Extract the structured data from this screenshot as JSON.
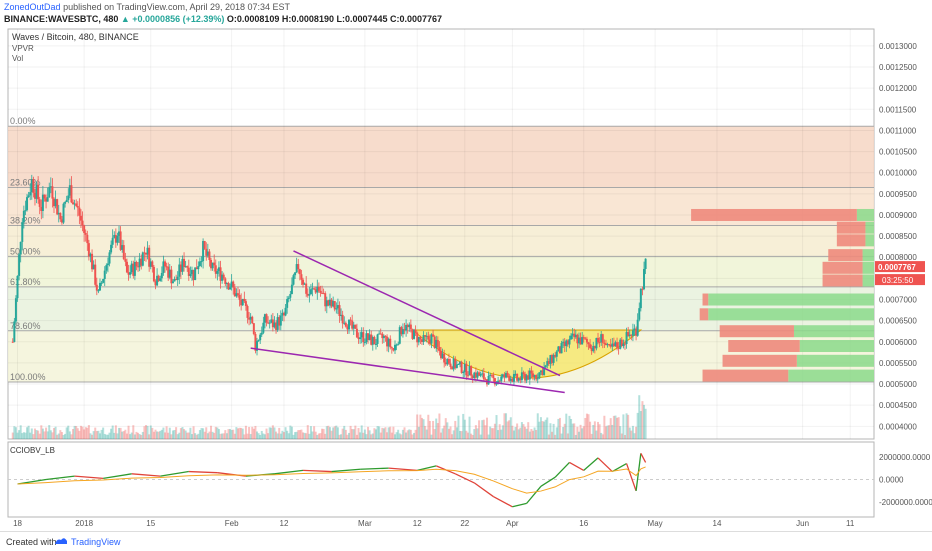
{
  "header": {
    "user": "ZonedOutDad",
    "published": "published on TradingView.com, April 29, 2018 07:34 EST",
    "symbol_line": "BINANCE:WAVESBTC, 480",
    "change": "▲ +0.0000856 (+12.39%)",
    "ohlc": "O:0.0008109 H:0.0008190 L:0.0007445 C:0.0007767"
  },
  "pane": {
    "title": "Waves / Bitcoin, 480, BINANCE",
    "ind1": "VPVR",
    "ind2": "Vol",
    "osc_label": "CCIOBV_LB"
  },
  "footer": {
    "created_with": "Created with",
    "brand": "TradingView"
  },
  "colors": {
    "up": "#26a69a",
    "down": "#ef5350",
    "wedge": "#9c27b0",
    "cup": "#f5e663",
    "fib_top_fill": "#f6d6c3",
    "fib_bottom_fill": "#f3f3d8",
    "vp_up": "#8bd98b",
    "vp_down": "#ee8a7c",
    "obv_green": "#2e9b2e",
    "obv_red": "#e0443a",
    "obv_orange": "#f5a623",
    "price_tag": "#ef5350"
  },
  "chart_data": {
    "type": "candlestick",
    "title": "Waves / Bitcoin, 480, BINANCE",
    "price_axis": [
      "0.0013000",
      "0.0012500",
      "0.0012000",
      "0.0011500",
      "0.0011000",
      "0.0010500",
      "0.0010000",
      "0.0009500",
      "0.0009000",
      "0.0008500",
      "0.0008000",
      "0.0007500",
      "0.0007000",
      "0.0006500",
      "0.0006000",
      "0.0005500",
      "0.0005000",
      "0.0004500",
      "0.0004000"
    ],
    "price_axis_values": [
      0.0013,
      0.00125,
      0.0012,
      0.00115,
      0.0011,
      0.00105,
      0.001,
      0.00095,
      0.0009,
      0.00085,
      0.0008,
      0.00075,
      0.0007,
      0.00065,
      0.0006,
      0.00055,
      0.0005,
      0.00045,
      0.0004
    ],
    "ylim": [
      0.00037,
      0.00134
    ],
    "last_price": "0.0007767",
    "countdown": "03:25:50",
    "time_axis": [
      "18",
      "2018",
      "15",
      "Feb",
      "12",
      "Mar",
      "12",
      "22",
      "Apr",
      "16",
      "May",
      "14",
      "Jun",
      "11"
    ],
    "time_axis_days": [
      -14,
      0,
      14,
      31,
      42,
      59,
      70,
      80,
      90,
      105,
      120,
      133,
      151,
      161
    ],
    "x_range_days": [
      -16,
      166
    ],
    "fib_levels": [
      {
        "label": "0.00%",
        "price": 0.00111
      },
      {
        "label": "23.60%",
        "price": 0.000965
      },
      {
        "label": "38.20%",
        "price": 0.000875
      },
      {
        "label": "50.00%",
        "price": 0.000802
      },
      {
        "label": "61.80%",
        "price": 0.00073
      },
      {
        "label": "78.60%",
        "price": 0.000626
      },
      {
        "label": "100.00%",
        "price": 0.000505
      }
    ],
    "ohlc_path": [
      {
        "d": -15,
        "p": 0.0006
      },
      {
        "d": -13,
        "p": 0.0009
      },
      {
        "d": -11,
        "p": 0.00098
      },
      {
        "d": -9,
        "p": 0.00092
      },
      {
        "d": -7,
        "p": 0.00097
      },
      {
        "d": -5,
        "p": 0.00089
      },
      {
        "d": -3,
        "p": 0.00096
      },
      {
        "d": -1,
        "p": 0.0009
      },
      {
        "d": 1,
        "p": 0.00082
      },
      {
        "d": 3,
        "p": 0.00071
      },
      {
        "d": 5,
        "p": 0.0008
      },
      {
        "d": 7,
        "p": 0.00086
      },
      {
        "d": 9,
        "p": 0.00076
      },
      {
        "d": 11,
        "p": 0.00078
      },
      {
        "d": 13,
        "p": 0.00082
      },
      {
        "d": 15,
        "p": 0.00075
      },
      {
        "d": 17,
        "p": 0.00078
      },
      {
        "d": 19,
        "p": 0.00074
      },
      {
        "d": 21,
        "p": 0.00079
      },
      {
        "d": 23,
        "p": 0.00076
      },
      {
        "d": 25,
        "p": 0.00082
      },
      {
        "d": 27,
        "p": 0.00077
      },
      {
        "d": 29,
        "p": 0.00076
      },
      {
        "d": 31,
        "p": 0.00073
      },
      {
        "d": 33,
        "p": 0.00069
      },
      {
        "d": 35,
        "p": 0.00066
      },
      {
        "d": 36,
        "p": 0.00059
      },
      {
        "d": 38,
        "p": 0.00065
      },
      {
        "d": 40,
        "p": 0.00064
      },
      {
        "d": 42,
        "p": 0.00066
      },
      {
        "d": 44,
        "p": 0.00074
      },
      {
        "d": 45,
        "p": 0.00078
      },
      {
        "d": 47,
        "p": 0.00071
      },
      {
        "d": 49,
        "p": 0.00073
      },
      {
        "d": 51,
        "p": 0.00069
      },
      {
        "d": 53,
        "p": 0.00068
      },
      {
        "d": 55,
        "p": 0.00065
      },
      {
        "d": 57,
        "p": 0.00062
      },
      {
        "d": 59,
        "p": 0.00061
      },
      {
        "d": 61,
        "p": 0.0006
      },
      {
        "d": 63,
        "p": 0.00061
      },
      {
        "d": 65,
        "p": 0.00058
      },
      {
        "d": 67,
        "p": 0.00064
      },
      {
        "d": 69,
        "p": 0.00062
      },
      {
        "d": 71,
        "p": 0.0006
      },
      {
        "d": 73,
        "p": 0.00061
      },
      {
        "d": 75,
        "p": 0.00057
      },
      {
        "d": 77,
        "p": 0.00055
      },
      {
        "d": 79,
        "p": 0.00054
      },
      {
        "d": 81,
        "p": 0.00053
      },
      {
        "d": 83,
        "p": 0.00052
      },
      {
        "d": 85,
        "p": 0.00051
      },
      {
        "d": 87,
        "p": 0.00051
      },
      {
        "d": 89,
        "p": 0.00052
      },
      {
        "d": 91,
        "p": 0.00051
      },
      {
        "d": 93,
        "p": 0.00052
      },
      {
        "d": 95,
        "p": 0.00052
      },
      {
        "d": 97,
        "p": 0.00054
      },
      {
        "d": 99,
        "p": 0.00057
      },
      {
        "d": 101,
        "p": 0.00059
      },
      {
        "d": 103,
        "p": 0.00061
      },
      {
        "d": 105,
        "p": 0.0006
      },
      {
        "d": 107,
        "p": 0.00059
      },
      {
        "d": 109,
        "p": 0.00061
      },
      {
        "d": 110,
        "p": 0.00058
      },
      {
        "d": 112,
        "p": 0.00059
      },
      {
        "d": 114,
        "p": 0.00061
      },
      {
        "d": 116,
        "p": 0.00063
      },
      {
        "d": 117,
        "p": 0.00072
      },
      {
        "d": 118,
        "p": 0.00078
      }
    ],
    "wedge_upper": [
      {
        "d": 44,
        "p": 0.000815
      },
      {
        "d": 100,
        "p": 0.00052
      }
    ],
    "wedge_lower": [
      {
        "d": 35,
        "p": 0.000585
      },
      {
        "d": 101,
        "p": 0.00048
      }
    ],
    "cup": {
      "start_d": 69,
      "end_d": 117,
      "rim": 0.000628,
      "bottom": 0.000508
    },
    "volume_profile": [
      {
        "price": 0.0009,
        "down": 0.58,
        "up": 0.06
      },
      {
        "price": 0.00087,
        "down": 0.1,
        "up": 0.03
      },
      {
        "price": 0.00084,
        "down": 0.1,
        "up": 0.03
      },
      {
        "price": 0.000805,
        "down": 0.12,
        "up": 0.04
      },
      {
        "price": 0.000775,
        "down": 0.14,
        "up": 0.04
      },
      {
        "price": 0.000745,
        "down": 0.14,
        "up": 0.04
      },
      {
        "price": 0.0007,
        "down": 0.02,
        "up": 0.58
      },
      {
        "price": 0.000665,
        "down": 0.03,
        "up": 0.58
      },
      {
        "price": 0.000625,
        "down": 0.26,
        "up": 0.28
      },
      {
        "price": 0.00059,
        "down": 0.25,
        "up": 0.26
      },
      {
        "price": 0.000555,
        "down": 0.26,
        "up": 0.27
      },
      {
        "price": 0.00052,
        "down": 0.3,
        "up": 0.3
      }
    ],
    "oscillator": {
      "name": "CCIOBV_LB",
      "axis": [
        "2000000.0000",
        "0.0000",
        "-2000000.0000"
      ],
      "axis_values": [
        2000000,
        0,
        -2000000
      ],
      "ylim": [
        -3300000,
        3300000
      ],
      "values": [
        {
          "d": -14,
          "v": -400000
        },
        {
          "d": -8,
          "v": 0
        },
        {
          "d": -2,
          "v": 300000
        },
        {
          "d": 4,
          "v": 100000
        },
        {
          "d": 10,
          "v": 500000
        },
        {
          "d": 16,
          "v": 300000
        },
        {
          "d": 22,
          "v": 700000
        },
        {
          "d": 28,
          "v": 600000
        },
        {
          "d": 34,
          "v": 300000
        },
        {
          "d": 40,
          "v": 500000
        },
        {
          "d": 46,
          "v": 800000
        },
        {
          "d": 52,
          "v": 700000
        },
        {
          "d": 58,
          "v": 900000
        },
        {
          "d": 64,
          "v": 1000000
        },
        {
          "d": 70,
          "v": 800000
        },
        {
          "d": 74,
          "v": 1200000
        },
        {
          "d": 78,
          "v": 500000
        },
        {
          "d": 82,
          "v": -300000
        },
        {
          "d": 86,
          "v": -1500000
        },
        {
          "d": 90,
          "v": -2400000
        },
        {
          "d": 93,
          "v": -2100000
        },
        {
          "d": 96,
          "v": -600000
        },
        {
          "d": 99,
          "v": 200000
        },
        {
          "d": 102,
          "v": 1500000
        },
        {
          "d": 105,
          "v": 800000
        },
        {
          "d": 108,
          "v": 1900000
        },
        {
          "d": 111,
          "v": 700000
        },
        {
          "d": 114,
          "v": 1400000
        },
        {
          "d": 116,
          "v": -1000000
        },
        {
          "d": 117,
          "v": 2300000
        },
        {
          "d": 118,
          "v": 1500000
        }
      ]
    }
  }
}
